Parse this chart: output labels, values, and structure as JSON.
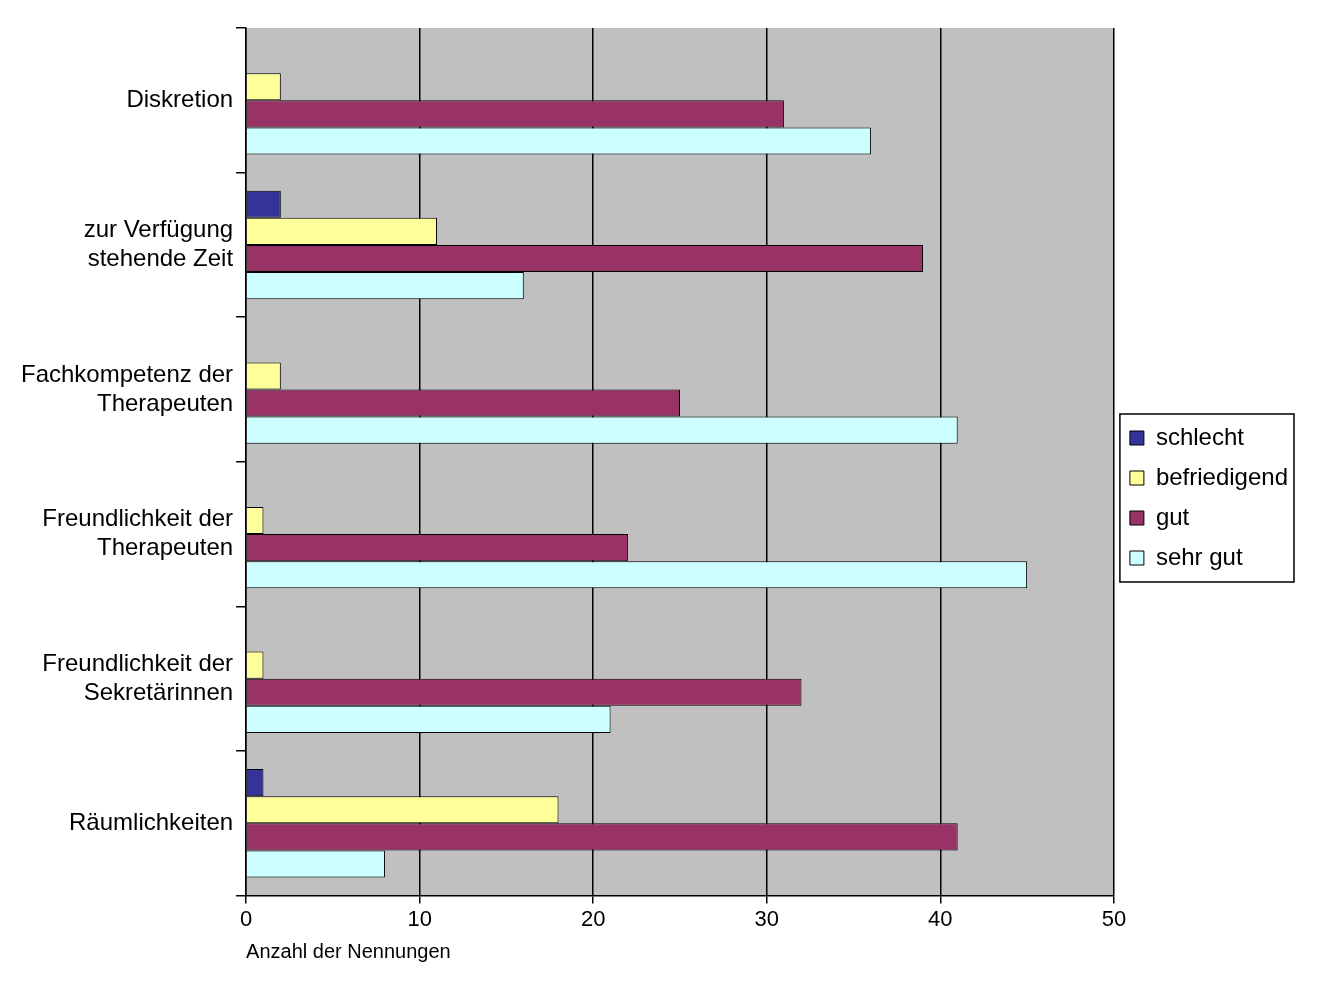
{
  "chart_data": {
    "type": "bar",
    "orientation": "horizontal",
    "xlabel": "Anzahl der Nennungen",
    "categories": [
      "Diskretion",
      "zur Verfügung\nstehende Zeit",
      "Fachkompetenz der\nTherapeuten",
      "Freundlichkeit der\nTherapeuten",
      "Freundlichkeit der\nSekretärinnen",
      "Räumlichkeiten"
    ],
    "series": [
      {
        "name": "schlecht",
        "color": "#333399",
        "values": [
          0,
          2,
          0,
          0,
          0,
          1
        ]
      },
      {
        "name": "befriedigend",
        "color": "#ffff99",
        "values": [
          2,
          11,
          2,
          1,
          1,
          18
        ]
      },
      {
        "name": "gut",
        "color": "#993366",
        "values": [
          31,
          39,
          25,
          22,
          32,
          41
        ]
      },
      {
        "name": "sehr gut",
        "color": "#ccffff",
        "values": [
          36,
          16,
          41,
          45,
          21,
          8
        ]
      }
    ],
    "xlim": [
      0,
      50
    ],
    "xticks": [
      0,
      10,
      20,
      30,
      40,
      50
    ],
    "grid": "x",
    "legend": "right"
  }
}
